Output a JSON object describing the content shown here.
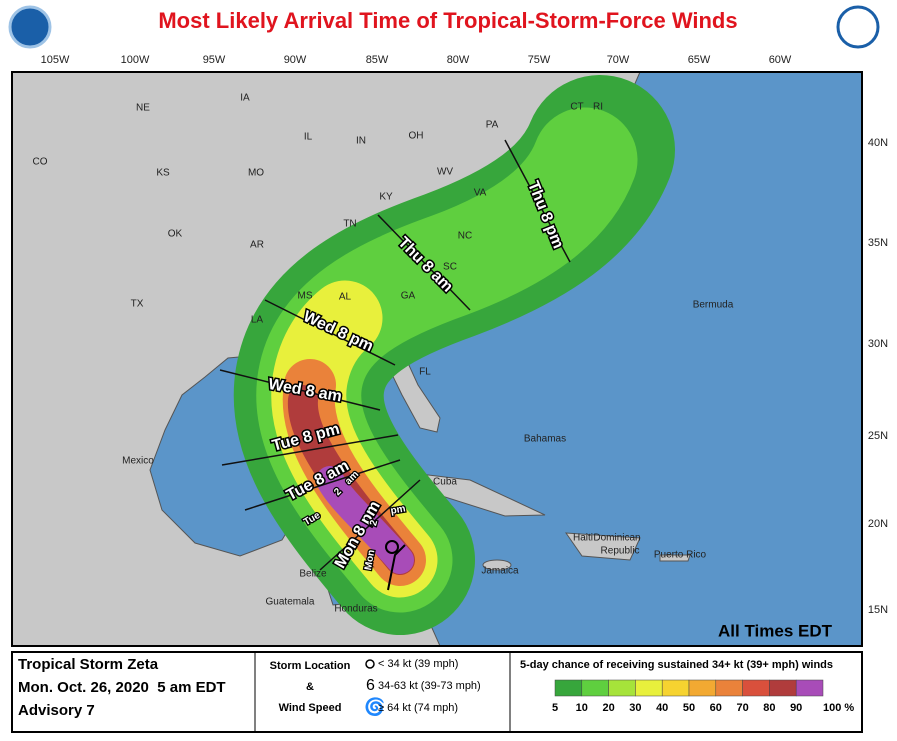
{
  "title": "Most Likely Arrival Time of Tropical-Storm-Force Winds",
  "longitudes": [
    "105W",
    "100W",
    "95W",
    "90W",
    "85W",
    "80W",
    "75W",
    "70W",
    "65W",
    "60W"
  ],
  "latitudes": [
    "40N",
    "35N",
    "30N",
    "25N",
    "20N",
    "15N"
  ],
  "places": [
    "NE",
    "IA",
    "IL",
    "IN",
    "OH",
    "PA",
    "CT",
    "RI",
    "CO",
    "KS",
    "MO",
    "KY",
    "WV",
    "VA",
    "OK",
    "AR",
    "TN",
    "NC",
    "SC",
    "TX",
    "MS",
    "AL",
    "GA",
    "LA",
    "FL",
    "Mexico",
    "Bermuda",
    "Bahamas",
    "Cuba",
    "Haiti",
    "Dominican",
    "Republic",
    "Puerto Rico",
    "Jamaica",
    "Belize",
    "Guatemala",
    "Honduras"
  ],
  "arrival_times": [
    "Thu 8 pm",
    "Thu 8 am",
    "Wed 8 pm",
    "Wed 8 am",
    "Tue 8 pm",
    "Tue 8 am",
    "Tue",
    "2",
    "am",
    "Mon 8 pm",
    "Mon",
    "2",
    "pm"
  ],
  "note": "All Times EDT",
  "storm": {
    "name": "Tropical Storm Zeta",
    "date": "Mon. Oct. 26, 2020  5 am EDT",
    "advisory": "Advisory 7"
  },
  "symbol_legend": {
    "title_1": "Storm Location",
    "title_2": "&",
    "title_3": "Wind Speed",
    "items": [
      "< 34 kt (39 mph)",
      "34-63 kt (39-73 mph)",
      "≥ 64 kt (74 mph)"
    ]
  },
  "probability_legend": {
    "title": "5-day chance of receiving sustained 34+ kt (39+ mph) winds",
    "labels": [
      "5",
      "10",
      "20",
      "30",
      "40",
      "50",
      "60",
      "70",
      "80",
      "90",
      "100 %"
    ],
    "colors": [
      "#37a63c",
      "#5fcf3f",
      "#a6e33a",
      "#e8f03c",
      "#f6d330",
      "#f2a932",
      "#ea823a",
      "#d9503c",
      "#b03c3c",
      "#a84cb8"
    ]
  }
}
